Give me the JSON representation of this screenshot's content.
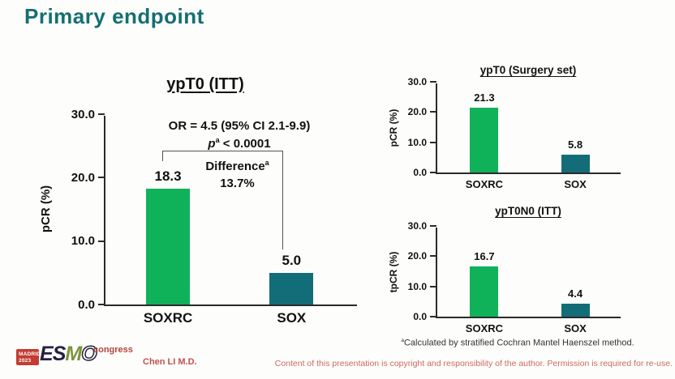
{
  "slide": {
    "title": "Primary endpoint"
  },
  "chart_data": [
    {
      "type": "bar",
      "title": "ypT0 (ITT)",
      "ylabel": "pCR (%)",
      "categories": [
        "SOXRC",
        "SOX"
      ],
      "values": [
        18.3,
        5.0
      ],
      "value_labels": [
        "18.3",
        "5.0"
      ],
      "ylim": [
        0,
        30
      ],
      "yticks": [
        "0.0",
        "10.0",
        "20.0",
        "30.0"
      ],
      "bar_colors": [
        "#10b259",
        "#136d78"
      ],
      "annotations": {
        "or_text": "OR = 4.5 (95% CI 2.1-9.9)",
        "p_symbol": "p",
        "p_sup": "a",
        "p_value": "< 0.0001",
        "difference_label": "Difference",
        "difference_sup": "a",
        "difference_value": "13.7%"
      }
    },
    {
      "type": "bar",
      "title": "ypT0 (Surgery set)",
      "ylabel": "pCR (%)",
      "categories": [
        "SOXRC",
        "SOX"
      ],
      "values": [
        21.3,
        5.8
      ],
      "value_labels": [
        "21.3",
        "5.8"
      ],
      "ylim": [
        0,
        30
      ],
      "yticks": [
        "0.0",
        "10.0",
        "20.0",
        "30.0"
      ],
      "bar_colors": [
        "#10b259",
        "#136d78"
      ]
    },
    {
      "type": "bar",
      "title": "ypT0N0 (ITT)",
      "ylabel": "tpCR (%)",
      "categories": [
        "SOXRC",
        "SOX"
      ],
      "values": [
        16.7,
        4.4
      ],
      "value_labels": [
        "16.7",
        "4.4"
      ],
      "ylim": [
        0,
        30
      ],
      "yticks": [
        "0.0",
        "10.0",
        "20.0",
        "30.0"
      ],
      "bar_colors": [
        "#10b259",
        "#136d78"
      ]
    }
  ],
  "footnote": {
    "sup": "a",
    "text": "Calculated by stratified Cochran Mantel Haenszel method."
  },
  "footer": {
    "logo": {
      "city": "MADRID",
      "year": "2023",
      "letters": [
        "E",
        "S",
        "M",
        "O"
      ],
      "congress": "congress"
    },
    "presenter": "Chen LI M.D.",
    "copyright": "Content of this presentation is copyright and responsibility of the author. Permission is required for re-use."
  },
  "colors": {
    "title_teal": "#146f73",
    "bar_green": "#10b259",
    "bar_teal": "#136d78",
    "accent_red": "#c0504d",
    "axis": "#2a2a2a"
  }
}
